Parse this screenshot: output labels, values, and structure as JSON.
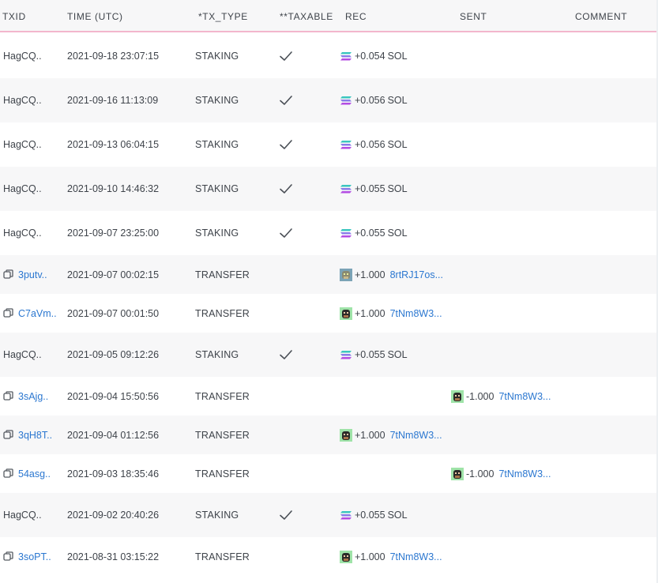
{
  "headers": {
    "txid": "TXID",
    "time": "TIME (UTC)",
    "tx_type": "*TX_TYPE",
    "taxable": "**TAXABLE",
    "rec": "REC",
    "sent": "SENT",
    "comment": "COMMENT"
  },
  "rows": [
    {
      "txid": "HagCQ..",
      "txid_link": false,
      "time": "2021-09-18 23:07:15",
      "type": "STAKING",
      "taxable": true,
      "rec": {
        "amount": "+0.054",
        "token": "SOL",
        "icon": "solana-icon",
        "link": false
      },
      "sent": null
    },
    {
      "txid": "HagCQ..",
      "txid_link": false,
      "time": "2021-09-16 11:13:09",
      "type": "STAKING",
      "taxable": true,
      "rec": {
        "amount": "+0.056",
        "token": "SOL",
        "icon": "solana-icon",
        "link": false
      },
      "sent": null
    },
    {
      "txid": "HagCQ..",
      "txid_link": false,
      "time": "2021-09-13 06:04:15",
      "type": "STAKING",
      "taxable": true,
      "rec": {
        "amount": "+0.056",
        "token": "SOL",
        "icon": "solana-icon",
        "link": false
      },
      "sent": null
    },
    {
      "txid": "HagCQ..",
      "txid_link": false,
      "time": "2021-09-10 14:46:32",
      "type": "STAKING",
      "taxable": true,
      "rec": {
        "amount": "+0.055",
        "token": "SOL",
        "icon": "solana-icon",
        "link": false
      },
      "sent": null
    },
    {
      "txid": "HagCQ..",
      "txid_link": false,
      "time": "2021-09-07 23:25:00",
      "type": "STAKING",
      "taxable": true,
      "rec": {
        "amount": "+0.055",
        "token": "SOL",
        "icon": "solana-icon",
        "link": false
      },
      "sent": null
    },
    {
      "txid": "3putv..",
      "txid_link": true,
      "time": "2021-09-07 00:02:15",
      "type": "TRANSFER",
      "taxable": false,
      "rec": {
        "amount": "+1.000",
        "token": "8rtRJ17os...",
        "icon": "nft-ape-blue-icon",
        "link": true
      },
      "sent": null
    },
    {
      "txid": "C7aVm..",
      "txid_link": true,
      "time": "2021-09-07 00:01:50",
      "type": "TRANSFER",
      "taxable": false,
      "rec": {
        "amount": "+1.000",
        "token": "7tNm8W3...",
        "icon": "nft-ape-green-icon",
        "link": true
      },
      "sent": null
    },
    {
      "txid": "HagCQ..",
      "txid_link": false,
      "time": "2021-09-05 09:12:26",
      "type": "STAKING",
      "taxable": true,
      "rec": {
        "amount": "+0.055",
        "token": "SOL",
        "icon": "solana-icon",
        "link": false
      },
      "sent": null
    },
    {
      "txid": "3sAjg..",
      "txid_link": true,
      "time": "2021-09-04 15:50:56",
      "type": "TRANSFER",
      "taxable": false,
      "rec": null,
      "sent": {
        "amount": "-1.000",
        "token": "7tNm8W3...",
        "icon": "nft-ape-green-icon",
        "link": true
      }
    },
    {
      "txid": "3qH8T..",
      "txid_link": true,
      "time": "2021-09-04 01:12:56",
      "type": "TRANSFER",
      "taxable": false,
      "rec": {
        "amount": "+1.000",
        "token": "7tNm8W3...",
        "icon": "nft-ape-green-icon",
        "link": true
      },
      "sent": null
    },
    {
      "txid": "54asg..",
      "txid_link": true,
      "time": "2021-09-03 18:35:46",
      "type": "TRANSFER",
      "taxable": false,
      "rec": null,
      "sent": {
        "amount": "-1.000",
        "token": "7tNm8W3...",
        "icon": "nft-ape-green-icon",
        "link": true
      }
    },
    {
      "txid": "HagCQ..",
      "txid_link": false,
      "time": "2021-09-02 20:40:26",
      "type": "STAKING",
      "taxable": true,
      "rec": {
        "amount": "+0.055",
        "token": "SOL",
        "icon": "solana-icon",
        "link": false
      },
      "sent": null
    },
    {
      "txid": "3soPT..",
      "txid_link": true,
      "time": "2021-08-31 03:15:22",
      "type": "TRANSFER",
      "taxable": false,
      "rec": {
        "amount": "+1.000",
        "token": "7tNm8W3...",
        "icon": "nft-ape-green-icon",
        "link": true
      },
      "sent": null
    }
  ],
  "colors": {
    "link": "#2b77d0",
    "header_bg": "#f7f7f8",
    "header_border": "#f3b6cc",
    "row_shade": "#f7f7f8"
  }
}
